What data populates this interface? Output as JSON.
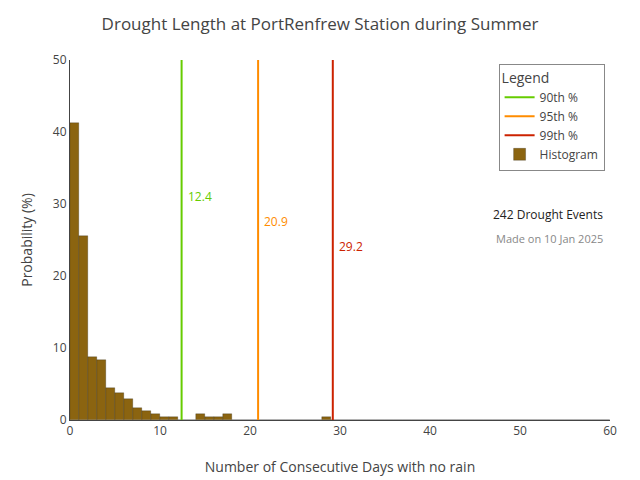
{
  "chart_data": {
    "type": "histogram",
    "title": "Drought Length at PortRenfrew Station during Summer",
    "x_label": "Number of Consecutive Days with no rain",
    "y_label": "Probability (%)",
    "bins": [
      0,
      1,
      2,
      3,
      4,
      5,
      6,
      7,
      8,
      9,
      10,
      11,
      12,
      13,
      14,
      15,
      16,
      17,
      18,
      19,
      20,
      21,
      22,
      23,
      24,
      25,
      26,
      27,
      28,
      29,
      30,
      31,
      32,
      33,
      34,
      35,
      36,
      37,
      38,
      39,
      40,
      41,
      42,
      43,
      44,
      45,
      46,
      47,
      48,
      49,
      50,
      51,
      52,
      53,
      54,
      55,
      56,
      57,
      58,
      59,
      60
    ],
    "values": [
      41.3,
      25.6,
      8.7,
      8.3,
      4.5,
      3.7,
      2.9,
      1.7,
      1.2,
      0.8,
      0.4,
      0.4,
      0.0,
      0.0,
      0.8,
      0.4,
      0.4,
      0.8,
      0.0,
      0.0,
      0.0,
      0.0,
      0.0,
      0.0,
      0.0,
      0.0,
      0.0,
      0.0,
      0.4,
      0.0,
      0.0,
      0.0,
      0.0,
      0.0,
      0.0,
      0.0,
      0.0,
      0.0,
      0.0,
      0.0,
      0.0,
      0.0,
      0.0,
      0.0,
      0.0,
      0.0,
      0.0,
      0.0,
      0.0,
      0.0,
      0.0,
      0.0,
      0.0,
      0.0,
      0.0,
      0.0,
      0.0,
      0.0,
      0.0,
      0.0
    ],
    "name": "Histogram",
    "color": "#8B6410",
    "percentiles": [
      {
        "name": "90th %",
        "value": 12.4,
        "color": "#66CC00"
      },
      {
        "name": "95th %",
        "value": 20.9,
        "color": "#FF8C00"
      },
      {
        "name": "99th %",
        "value": 29.2,
        "color": "#CC2200"
      }
    ],
    "legend_title": "Legend",
    "legend": "upper right",
    "annotations": [
      "242 Drought Events",
      "Made on 10 Jan 2025"
    ],
    "xlim": [
      0,
      60
    ],
    "ylim": [
      0,
      50
    ],
    "xticks": [
      0,
      10,
      20,
      30,
      40,
      50,
      60
    ],
    "yticks": [
      0,
      10,
      20,
      30,
      40,
      50
    ],
    "grid": false
  }
}
